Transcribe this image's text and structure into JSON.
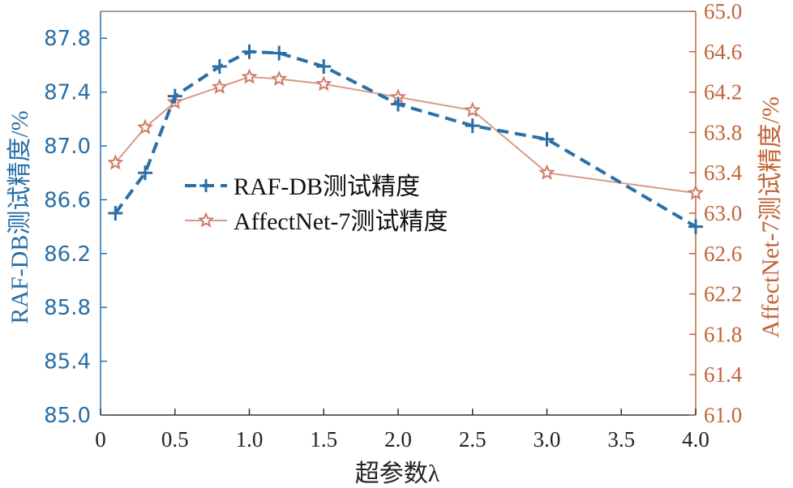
{
  "chart_data": {
    "type": "line",
    "xlabel": "超参数λ",
    "ylabel_left": "RAF-DB测试精度/%",
    "ylabel_right": "AffectNet-7测试精度/%",
    "xlim": [
      0,
      4.0
    ],
    "ylim_left": [
      85.0,
      88.0
    ],
    "ylim_right": [
      61.0,
      65.0
    ],
    "x_ticks": [
      "0",
      "0.5",
      "1.0",
      "1.5",
      "2.0",
      "2.5",
      "3.0",
      "3.5",
      "4.0"
    ],
    "x_tick_values": [
      0,
      0.5,
      1.0,
      1.5,
      2.0,
      2.5,
      3.0,
      3.5,
      4.0
    ],
    "y_left_ticks": [
      "85.0",
      "85.4",
      "85.8",
      "86.2",
      "86.6",
      "87.0",
      "87.4",
      "87.8"
    ],
    "y_left_tick_values": [
      85.0,
      85.4,
      85.8,
      86.2,
      86.6,
      87.0,
      87.4,
      87.8
    ],
    "y_right_ticks": [
      "61.0",
      "61.4",
      "61.8",
      "62.2",
      "62.6",
      "63.0",
      "63.4",
      "63.8",
      "64.2",
      "64.6",
      "65.0"
    ],
    "y_right_tick_values": [
      61.0,
      61.4,
      61.8,
      62.2,
      62.6,
      63.0,
      63.4,
      63.8,
      64.2,
      64.6,
      65.0
    ],
    "legend_position": "center-left",
    "grid": false,
    "series": [
      {
        "name": "RAF-DB测试精度",
        "axis": "left",
        "color": "#2a6fa6",
        "style": "dashed",
        "marker": "plus",
        "x": [
          0.1,
          0.3,
          0.5,
          0.8,
          1.0,
          1.2,
          1.5,
          2.0,
          2.5,
          3.0,
          4.0
        ],
        "y": [
          86.5,
          86.8,
          87.37,
          87.59,
          87.7,
          87.69,
          87.59,
          87.31,
          87.15,
          87.05,
          86.4
        ]
      },
      {
        "name": "AffectNet-7测试精度",
        "axis": "right",
        "color": "#d89a8a",
        "style": "solid",
        "marker": "star",
        "x": [
          0.1,
          0.3,
          0.5,
          0.8,
          1.0,
          1.2,
          1.5,
          2.0,
          2.5,
          3.0,
          4.0
        ],
        "y": [
          63.5,
          63.85,
          64.1,
          64.25,
          64.35,
          64.33,
          64.28,
          64.15,
          64.02,
          63.4,
          63.2
        ]
      }
    ]
  }
}
